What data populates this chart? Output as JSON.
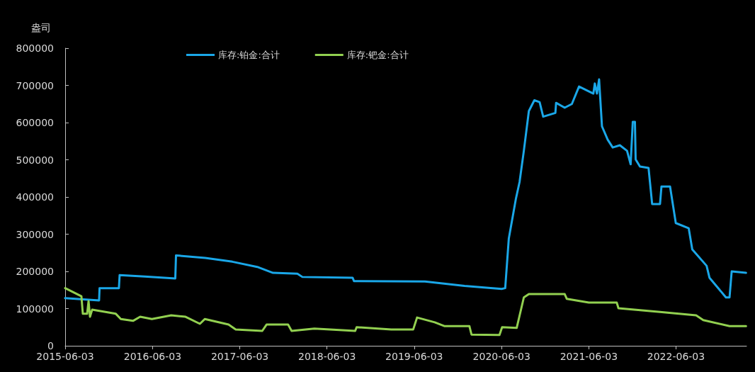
{
  "chart_data": {
    "type": "line",
    "ylabel": "盎司",
    "legend": "top",
    "grid": false,
    "marker": "none",
    "line_style": "solid",
    "xlim": [
      "2015-06-03",
      "2023-03-25"
    ],
    "xticks": [
      "2015-06-03",
      "2016-06-03",
      "2017-06-03",
      "2018-06-03",
      "2019-06-03",
      "2020-06-03",
      "2021-06-03",
      "2022-06-03"
    ],
    "ylim": [
      0,
      800000
    ],
    "yticks": [
      0,
      100000,
      200000,
      300000,
      400000,
      500000,
      600000,
      700000,
      800000
    ],
    "series": [
      {
        "name": "库存:铂金:合计",
        "color": "#1aa7e8",
        "x": [
          "2015-06-03",
          "2015-10-23",
          "2015-10-25",
          "2016-01-14",
          "2016-01-17",
          "2016-05-01",
          "2016-09-06",
          "2016-09-09",
          "2017-01-09",
          "2017-05-03",
          "2017-08-15",
          "2017-10-20",
          "2018-01-30",
          "2018-02-20",
          "2018-09-18",
          "2018-09-24",
          "2019-07-18",
          "2019-12-31",
          "2020-06-03",
          "2020-06-18",
          "2020-07-03",
          "2020-08-02",
          "2020-08-17",
          "2020-09-04",
          "2020-09-25",
          "2020-10-18",
          "2020-11-09",
          "2020-11-24",
          "2021-01-14",
          "2021-01-17",
          "2021-02-22",
          "2021-03-24",
          "2021-04-23",
          "2021-06-22",
          "2021-06-28",
          "2021-07-07",
          "2021-07-16",
          "2021-07-28",
          "2021-08-21",
          "2021-09-11",
          "2021-10-11",
          "2021-11-10",
          "2021-11-25",
          "2021-12-04",
          "2021-12-13",
          "2021-12-16",
          "2022-01-03",
          "2022-02-08",
          "2022-02-23",
          "2022-03-28",
          "2022-04-03",
          "2022-05-09",
          "2022-06-02",
          "2022-07-26",
          "2022-08-10",
          "2022-10-09",
          "2022-10-21",
          "2022-12-29",
          "2023-01-13",
          "2023-01-22",
          "2023-03-23"
        ],
        "values": [
          128000,
          122000,
          155000,
          155000,
          190000,
          186000,
          181000,
          243000,
          236000,
          226000,
          212000,
          196000,
          194000,
          185000,
          183000,
          174000,
          173000,
          161000,
          153000,
          155000,
          288000,
          396000,
          440000,
          524000,
          631000,
          660000,
          655000,
          616000,
          626000,
          653000,
          640000,
          650000,
          697000,
          678000,
          705000,
          678000,
          716000,
          590000,
          554000,
          533000,
          539000,
          524000,
          488000,
          602000,
          602000,
          501000,
          482000,
          478000,
          381000,
          381000,
          428000,
          428000,
          330000,
          316000,
          259000,
          215000,
          183000,
          130000,
          130000,
          200000,
          196000
        ]
      },
      {
        "name": "库存:钯金:合计",
        "color": "#92d050",
        "x": [
          "2015-06-03",
          "2015-08-10",
          "2015-08-16",
          "2015-09-03",
          "2015-09-09",
          "2015-09-15",
          "2015-09-24",
          "2016-01-01",
          "2016-01-22",
          "2016-03-13",
          "2016-04-12",
          "2016-05-31",
          "2016-08-20",
          "2016-10-19",
          "2016-12-18",
          "2017-01-08",
          "2017-04-17",
          "2017-05-17",
          "2017-09-05",
          "2017-09-23",
          "2017-12-22",
          "2018-01-06",
          "2018-04-11",
          "2018-09-29",
          "2018-10-05",
          "2019-02-27",
          "2019-05-30",
          "2019-06-15",
          "2019-08-28",
          "2019-10-07",
          "2020-01-20",
          "2020-01-29",
          "2020-05-25",
          "2020-06-05",
          "2020-08-05",
          "2020-09-04",
          "2020-09-25",
          "2021-02-22",
          "2021-03-03",
          "2021-06-03",
          "2021-09-28",
          "2021-10-05",
          "2022-03-28",
          "2022-08-26",
          "2022-09-25",
          "2023-01-13",
          "2023-03-23"
        ],
        "values": [
          155000,
          133000,
          86000,
          86000,
          120000,
          78000,
          97000,
          86000,
          72000,
          67000,
          78000,
          72000,
          82000,
          78000,
          59000,
          72000,
          57000,
          44000,
          40000,
          57000,
          57000,
          40000,
          46000,
          40000,
          50000,
          44000,
          44000,
          76000,
          63000,
          53000,
          53000,
          30000,
          29000,
          50000,
          48000,
          130000,
          139000,
          139000,
          126000,
          116000,
          116000,
          101000,
          91000,
          82000,
          69000,
          53000,
          53000
        ]
      }
    ]
  }
}
